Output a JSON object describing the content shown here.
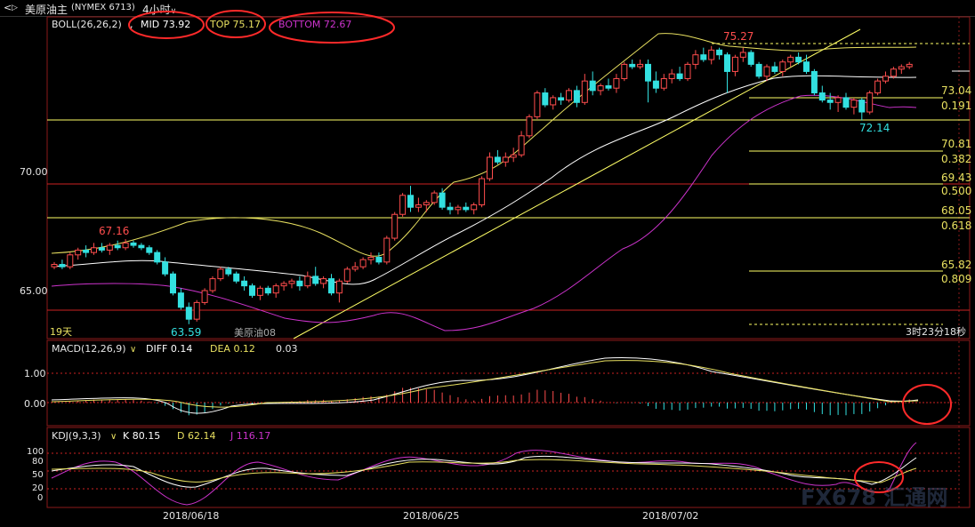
{
  "header": {
    "nav_glyph": "<",
    "nav_glyph2": "▷",
    "title": "美原油主",
    "exchange": "(NYMEX 6713)",
    "period": "4小时"
  },
  "colors": {
    "up": "#ff4d4d",
    "down": "#33e0e0",
    "boll_mid": "#ffffff",
    "boll_top": "#e8e060",
    "boll_bottom": "#cc33cc",
    "fib": "#ffff66",
    "red_line": "#cc2222",
    "frame": "#8b1a1a",
    "annot": "#ff2a2a"
  },
  "boll": {
    "label": "BOLL(26,26,2)",
    "sep": ",",
    "mid_label": "MID 73.92",
    "top_label": "TOP 75.17",
    "bottom_label": "BOTTOM 72.67"
  },
  "price_axis": [
    "70.00",
    "65.00"
  ],
  "price_labels": {
    "high": "75.27",
    "left_high": "67.16",
    "low": "63.59",
    "recent_low": "72.14",
    "days": "19天",
    "series_name": "美原油08",
    "countdown": "3时23分18秒"
  },
  "fib_levels": [
    {
      "price": "73.04",
      "ratio": "0.191"
    },
    {
      "price": "70.81",
      "ratio": "0.382"
    },
    {
      "price": "69.43",
      "ratio": "0.500"
    },
    {
      "price": "68.05",
      "ratio": "0.618"
    },
    {
      "price": "65.82",
      "ratio": "0.809"
    }
  ],
  "macd": {
    "label": "MACD(12,26,9)",
    "diff": "DIFF 0.14",
    "dea": "DEA 0.12",
    "macd": "0.03",
    "axis": [
      "1.00",
      "0.00"
    ]
  },
  "kdj": {
    "label": "KDJ(9,3,3)",
    "k": "K 80.15",
    "d": "D 62.14",
    "j": "J 116.17",
    "axis": [
      "100",
      "80",
      "50",
      "20",
      "0"
    ]
  },
  "dates": [
    "2018/06/18",
    "2018/06/25",
    "2018/07/02"
  ],
  "watermark": "FX678 汇通网",
  "chart_data": {
    "type": "candlestick",
    "title": "美原油主 (NYMEX 6713) 4小时",
    "indicators": [
      "BOLL(26,26,2)",
      "MACD(12,26,9)",
      "KDJ(9,3,3)"
    ],
    "last_values": {
      "boll_mid": 73.92,
      "boll_top": 75.17,
      "boll_bottom": 72.67,
      "macd_diff": 0.14,
      "macd_dea": 0.12,
      "macd": 0.03,
      "kdj_k": 80.15,
      "kdj_d": 62.14,
      "kdj_j": 116.17
    },
    "fibonacci": [
      [
        73.04,
        0.191
      ],
      [
        70.81,
        0.382
      ],
      [
        69.43,
        0.5
      ],
      [
        68.05,
        0.618
      ],
      [
        65.82,
        0.809
      ]
    ],
    "marked_prices": [
      75.27,
      67.16,
      63.59,
      72.14
    ],
    "y_ticks": [
      70.0,
      65.0
    ],
    "x_ticks": [
      "2018/06/18",
      "2018/06/25",
      "2018/07/02"
    ],
    "candles": [
      [
        66.0,
        66.2,
        65.9,
        66.1
      ],
      [
        66.1,
        66.3,
        65.9,
        66.0
      ],
      [
        66.0,
        66.6,
        65.9,
        66.5
      ],
      [
        66.5,
        66.8,
        66.3,
        66.7
      ],
      [
        66.7,
        66.9,
        66.4,
        66.6
      ],
      [
        66.6,
        67.0,
        66.5,
        66.8
      ],
      [
        66.8,
        67.0,
        66.6,
        66.7
      ],
      [
        66.7,
        67.0,
        66.5,
        66.9
      ],
      [
        66.9,
        67.1,
        66.7,
        66.8
      ],
      [
        66.8,
        67.16,
        66.7,
        67.0
      ],
      [
        67.0,
        67.1,
        66.8,
        66.9
      ],
      [
        66.9,
        67.0,
        66.7,
        66.8
      ],
      [
        66.8,
        66.9,
        66.5,
        66.6
      ],
      [
        66.6,
        66.7,
        66.1,
        66.2
      ],
      [
        66.2,
        66.4,
        65.6,
        65.7
      ],
      [
        65.7,
        65.8,
        64.8,
        64.9
      ],
      [
        64.9,
        65.1,
        64.2,
        64.3
      ],
      [
        64.3,
        64.5,
        63.59,
        63.8
      ],
      [
        63.8,
        64.6,
        63.7,
        64.5
      ],
      [
        64.5,
        65.1,
        64.4,
        65.0
      ],
      [
        65.0,
        65.6,
        64.9,
        65.5
      ],
      [
        65.5,
        66.0,
        65.4,
        65.9
      ],
      [
        65.9,
        66.0,
        65.6,
        65.7
      ],
      [
        65.7,
        65.8,
        65.3,
        65.4
      ],
      [
        65.4,
        65.6,
        65.0,
        65.2
      ],
      [
        65.2,
        65.3,
        64.7,
        64.8
      ],
      [
        64.8,
        65.2,
        64.6,
        65.1
      ],
      [
        65.1,
        65.2,
        64.8,
        64.9
      ],
      [
        64.9,
        65.3,
        64.7,
        65.2
      ],
      [
        65.2,
        65.4,
        65.0,
        65.3
      ],
      [
        65.3,
        65.5,
        65.1,
        65.4
      ],
      [
        65.4,
        65.6,
        65.0,
        65.2
      ],
      [
        65.2,
        65.8,
        65.1,
        65.6
      ],
      [
        65.6,
        66.0,
        65.2,
        65.3
      ],
      [
        65.3,
        65.6,
        65.1,
        65.5
      ],
      [
        65.5,
        65.7,
        64.8,
        64.9
      ],
      [
        64.9,
        65.5,
        64.5,
        65.4
      ],
      [
        65.4,
        66.0,
        65.3,
        65.9
      ],
      [
        65.9,
        66.2,
        65.8,
        66.0
      ],
      [
        66.0,
        66.4,
        65.9,
        66.3
      ],
      [
        66.3,
        66.6,
        66.1,
        66.4
      ],
      [
        66.4,
        66.6,
        66.1,
        66.2
      ],
      [
        66.2,
        67.3,
        66.1,
        67.2
      ],
      [
        67.2,
        68.3,
        67.1,
        68.2
      ],
      [
        68.2,
        69.1,
        68.1,
        69.0
      ],
      [
        69.0,
        69.4,
        68.3,
        68.5
      ],
      [
        68.5,
        68.9,
        68.3,
        68.6
      ],
      [
        68.6,
        68.8,
        68.3,
        68.7
      ],
      [
        68.7,
        69.2,
        68.6,
        69.1
      ],
      [
        69.1,
        69.3,
        68.4,
        68.5
      ],
      [
        68.5,
        68.7,
        68.2,
        68.4
      ],
      [
        68.4,
        68.6,
        68.2,
        68.5
      ],
      [
        68.5,
        68.7,
        68.3,
        68.4
      ],
      [
        68.4,
        68.7,
        68.2,
        68.6
      ],
      [
        68.6,
        69.8,
        68.5,
        69.7
      ],
      [
        69.7,
        70.8,
        69.6,
        70.6
      ],
      [
        70.6,
        70.9,
        70.3,
        70.4
      ],
      [
        70.4,
        70.8,
        70.2,
        70.6
      ],
      [
        70.6,
        71.0,
        70.4,
        70.7
      ],
      [
        70.7,
        71.7,
        70.6,
        71.5
      ],
      [
        71.5,
        72.4,
        71.4,
        72.3
      ],
      [
        72.3,
        73.4,
        72.2,
        73.3
      ],
      [
        73.3,
        73.5,
        72.7,
        72.8
      ],
      [
        72.8,
        73.2,
        72.6,
        73.1
      ],
      [
        73.1,
        73.3,
        72.8,
        73.0
      ],
      [
        73.0,
        73.5,
        72.9,
        73.4
      ],
      [
        73.4,
        73.6,
        72.7,
        72.9
      ],
      [
        72.9,
        74.1,
        72.8,
        73.8
      ],
      [
        73.8,
        74.2,
        73.2,
        73.4
      ],
      [
        73.4,
        73.7,
        73.2,
        73.6
      ],
      [
        73.6,
        73.9,
        73.4,
        73.5
      ],
      [
        73.5,
        74.1,
        73.3,
        73.9
      ],
      [
        73.9,
        74.6,
        73.8,
        74.5
      ],
      [
        74.5,
        74.7,
        74.3,
        74.4
      ],
      [
        74.4,
        74.7,
        74.3,
        74.5
      ],
      [
        74.5,
        74.7,
        72.9,
        73.8
      ],
      [
        73.8,
        74.2,
        73.3,
        73.5
      ],
      [
        73.5,
        74.1,
        73.4,
        73.9
      ],
      [
        73.9,
        74.3,
        73.7,
        74.1
      ],
      [
        74.1,
        74.4,
        73.8,
        73.9
      ],
      [
        73.9,
        74.6,
        73.8,
        74.5
      ],
      [
        74.5,
        75.1,
        74.3,
        74.9
      ],
      [
        74.9,
        75.2,
        74.6,
        74.7
      ],
      [
        74.7,
        75.27,
        74.5,
        75.1
      ],
      [
        75.1,
        75.2,
        74.7,
        74.9
      ],
      [
        74.9,
        75.0,
        73.3,
        74.2
      ],
      [
        74.2,
        74.9,
        74.0,
        74.8
      ],
      [
        74.8,
        75.2,
        74.6,
        75.0
      ],
      [
        75.0,
        75.1,
        74.4,
        74.5
      ],
      [
        74.5,
        74.6,
        73.9,
        74.0
      ],
      [
        74.0,
        74.5,
        73.8,
        74.4
      ],
      [
        74.4,
        74.6,
        74.1,
        74.2
      ],
      [
        74.2,
        74.7,
        74.0,
        74.6
      ],
      [
        74.6,
        74.9,
        74.4,
        74.8
      ],
      [
        74.8,
        75.0,
        74.5,
        74.6
      ],
      [
        74.6,
        74.9,
        74.1,
        74.2
      ],
      [
        74.2,
        74.3,
        73.2,
        73.3
      ],
      [
        73.3,
        73.6,
        72.9,
        73.0
      ],
      [
        73.0,
        73.3,
        72.6,
        72.9
      ],
      [
        72.9,
        73.2,
        72.5,
        73.1
      ],
      [
        73.1,
        73.3,
        72.6,
        72.7
      ],
      [
        72.7,
        73.1,
        72.4,
        73.0
      ],
      [
        73.0,
        73.1,
        72.14,
        72.5
      ],
      [
        72.5,
        73.4,
        72.4,
        73.3
      ],
      [
        73.3,
        73.9,
        73.2,
        73.8
      ],
      [
        73.8,
        74.2,
        73.7,
        74.0
      ],
      [
        74.0,
        74.4,
        73.9,
        74.3
      ],
      [
        74.3,
        74.5,
        74.1,
        74.4
      ],
      [
        74.4,
        74.6,
        74.3,
        74.5
      ]
    ]
  }
}
